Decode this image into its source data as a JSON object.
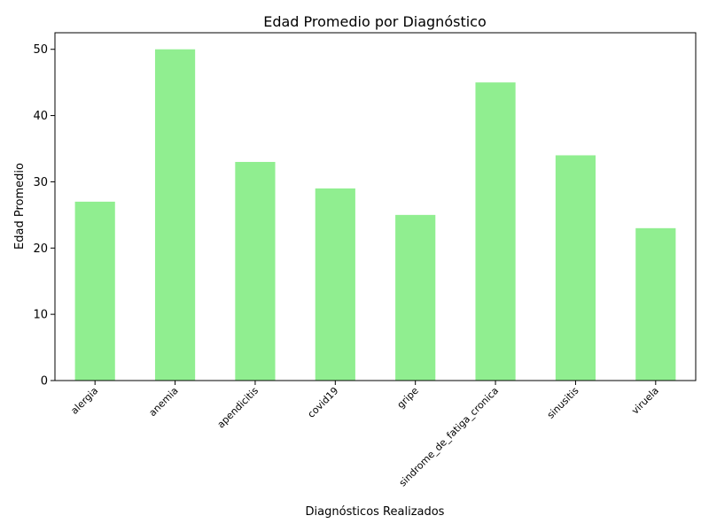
{
  "chart_data": {
    "type": "bar",
    "title": "Edad Promedio por Diagnóstico",
    "xlabel": "Diagnósticos Realizados",
    "ylabel": "Edad Promedio",
    "categories": [
      "alergia",
      "anemia",
      "apendicitis",
      "covid19",
      "gripe",
      "sindrome_de_fatiga_cronica",
      "sinusitis",
      "viruela"
    ],
    "values": [
      27,
      50,
      33,
      29,
      25,
      45,
      34,
      23
    ],
    "ylim": [
      0,
      52.5
    ],
    "yticks": [
      0,
      10,
      20,
      30,
      40,
      50
    ],
    "bar_color": "#90ee90",
    "grid": false,
    "legend": "none"
  }
}
